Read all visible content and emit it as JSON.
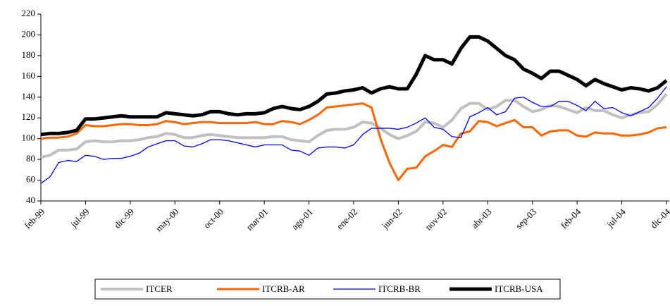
{
  "chart_data": {
    "type": "line",
    "categories": [
      "feb-99",
      null,
      null,
      null,
      null,
      "jul-99",
      null,
      null,
      null,
      null,
      "dic-99",
      null,
      null,
      null,
      null,
      "may-00",
      null,
      null,
      null,
      null,
      "oct-00",
      null,
      null,
      null,
      null,
      "mar-01",
      null,
      null,
      null,
      null,
      "ago-01",
      null,
      null,
      null,
      null,
      "ene-02",
      null,
      null,
      null,
      null,
      "jun-02",
      null,
      null,
      null,
      null,
      "nov-02",
      null,
      null,
      null,
      null,
      "abr-03",
      null,
      null,
      null,
      null,
      "sep-03",
      null,
      null,
      null,
      null,
      "feb-04",
      null,
      null,
      null,
      null,
      "jul-04",
      null,
      null,
      null,
      null,
      "dic-04"
    ],
    "series": [
      {
        "name": "ITCER",
        "color": "#c0c0c0",
        "width": 4,
        "values": [
          82,
          84,
          89,
          89,
          90,
          97,
          98,
          97,
          97,
          98,
          98,
          99,
          101,
          102,
          105,
          104,
          101,
          101,
          103,
          104,
          103,
          102,
          101,
          101,
          101,
          101,
          102,
          102,
          99,
          98,
          97,
          103,
          108,
          109,
          109,
          111,
          116,
          115,
          110,
          104,
          100,
          103,
          107,
          116,
          115,
          111,
          118,
          129,
          134,
          134,
          128,
          131,
          137,
          137,
          131,
          126,
          128,
          132,
          131,
          128,
          125,
          130,
          127,
          127,
          123,
          120,
          123,
          125,
          126,
          133,
          143
        ]
      },
      {
        "name": "ITCRB-AR",
        "color": "#ff6600",
        "width": 3,
        "values": [
          100,
          101,
          101,
          102,
          105,
          113,
          112,
          112,
          113,
          114,
          114,
          113,
          113,
          114,
          117,
          116,
          114,
          115,
          116,
          116,
          115,
          115,
          115,
          115,
          116,
          114,
          114,
          117,
          116,
          114,
          118,
          123,
          130,
          131,
          132,
          133,
          134,
          130,
          100,
          77,
          60,
          71,
          72,
          83,
          88,
          94,
          92,
          105,
          107,
          117,
          116,
          112,
          115,
          118,
          111,
          111,
          103,
          107,
          108,
          108,
          103,
          102,
          106,
          105,
          105,
          103,
          103,
          104,
          106,
          110,
          111
        ]
      },
      {
        "name": "ITCRB-BR",
        "color": "#0000ff",
        "width": 1.3,
        "values": [
          57,
          63,
          77,
          79,
          78,
          84,
          83,
          80,
          81,
          81,
          83,
          86,
          92,
          95,
          98,
          98,
          93,
          92,
          95,
          99,
          99,
          98,
          96,
          94,
          92,
          94,
          94,
          94,
          89,
          88,
          84,
          91,
          92,
          92,
          91,
          94,
          104,
          110,
          110,
          110,
          109,
          111,
          115,
          120,
          111,
          109,
          102,
          101,
          121,
          125,
          130,
          123,
          126,
          139,
          140,
          135,
          131,
          131,
          136,
          136,
          132,
          127,
          136,
          129,
          130,
          125,
          122,
          126,
          130,
          139,
          150
        ]
      },
      {
        "name": "ITCRB-USA",
        "color": "#000000",
        "width": 5,
        "values": [
          104,
          105,
          105,
          106,
          108,
          119,
          119,
          120,
          121,
          122,
          121,
          121,
          121,
          121,
          125,
          124,
          123,
          122,
          123,
          126,
          126,
          124,
          123,
          124,
          124,
          125,
          129,
          131,
          129,
          128,
          131,
          136,
          143,
          144,
          146,
          147,
          149,
          144,
          148,
          150,
          148,
          148,
          162,
          180,
          176,
          176,
          172,
          187,
          198,
          198,
          194,
          187,
          180,
          176,
          167,
          163,
          158,
          165,
          165,
          161,
          157,
          151,
          157,
          153,
          150,
          147,
          149,
          148,
          146,
          149,
          156
        ]
      }
    ],
    "ylim": [
      40,
      220
    ],
    "yticks": [
      40,
      60,
      80,
      100,
      120,
      140,
      160,
      180,
      200,
      220
    ],
    "grid": false,
    "legend": "bottom"
  }
}
